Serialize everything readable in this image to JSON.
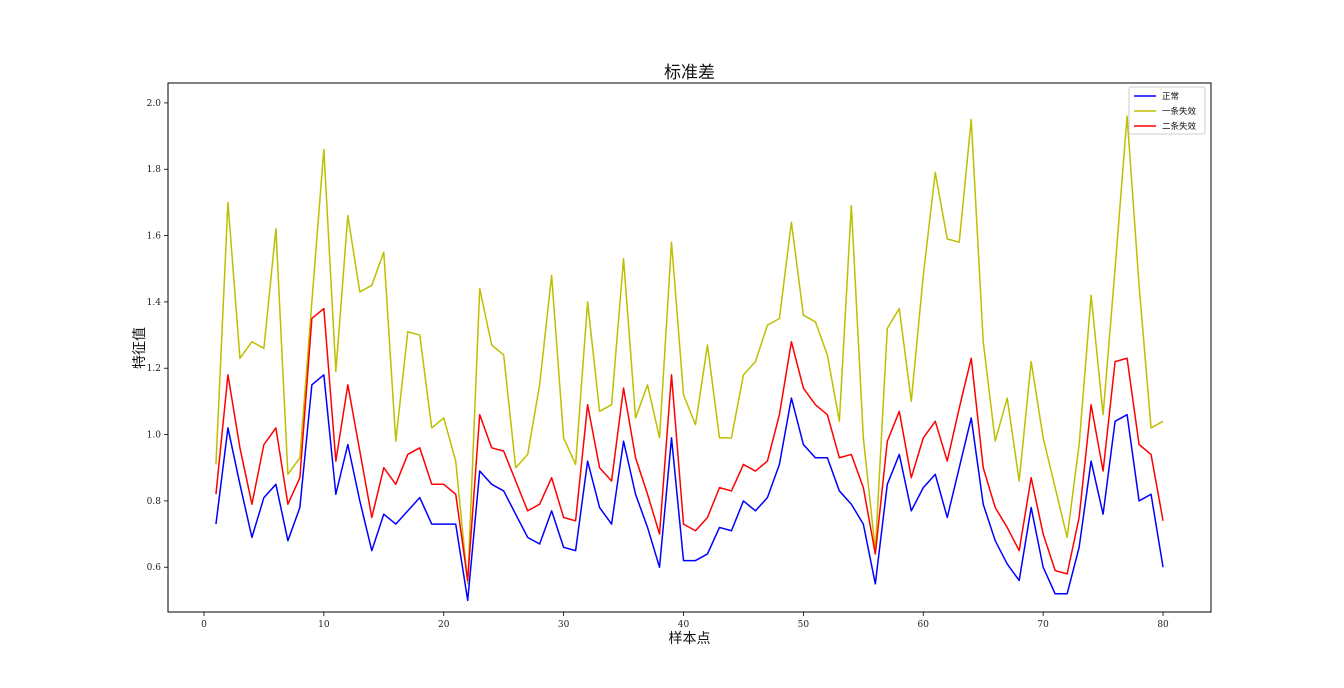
{
  "chart_data": {
    "type": "line",
    "title": "标准差",
    "xlabel": "样本点",
    "ylabel": "特征值",
    "xlim": [
      -3,
      84
    ],
    "ylim": [
      0.465,
      2.06
    ],
    "xticks": [
      0,
      10,
      20,
      30,
      40,
      50,
      60,
      70,
      80
    ],
    "yticks": [
      0.6,
      0.8,
      1.0,
      1.2,
      1.4,
      1.6,
      1.8,
      2.0
    ],
    "ytick_labels": [
      "0.6",
      "0.8",
      "1.0",
      "1.2",
      "1.4",
      "1.6",
      "1.8",
      "2.0"
    ],
    "grid": false,
    "legend_position": "top-right",
    "x": [
      1,
      2,
      3,
      4,
      5,
      6,
      7,
      8,
      9,
      10,
      11,
      12,
      13,
      14,
      15,
      16,
      17,
      18,
      19,
      20,
      21,
      22,
      23,
      24,
      25,
      26,
      27,
      28,
      29,
      30,
      31,
      32,
      33,
      34,
      35,
      36,
      37,
      38,
      39,
      40,
      41,
      42,
      43,
      44,
      45,
      46,
      47,
      48,
      49,
      50,
      51,
      52,
      53,
      54,
      55,
      56,
      57,
      58,
      59,
      60,
      61,
      62,
      63,
      64,
      65,
      66,
      67,
      68,
      69,
      70,
      71,
      72,
      73,
      74,
      75,
      76,
      77,
      78,
      79,
      80
    ],
    "series": [
      {
        "name": "正常",
        "color": "#0000ff",
        "values": [
          0.73,
          1.02,
          0.85,
          0.69,
          0.81,
          0.85,
          0.68,
          0.78,
          1.15,
          1.18,
          0.82,
          0.97,
          0.8,
          0.65,
          0.76,
          0.73,
          0.77,
          0.81,
          0.73,
          0.73,
          0.73,
          0.5,
          0.89,
          0.85,
          0.83,
          0.76,
          0.69,
          0.67,
          0.77,
          0.66,
          0.65,
          0.92,
          0.78,
          0.73,
          0.98,
          0.82,
          0.72,
          0.6,
          0.99,
          0.62,
          0.62,
          0.64,
          0.72,
          0.71,
          0.8,
          0.77,
          0.81,
          0.91,
          1.11,
          0.97,
          0.93,
          0.93,
          0.83,
          0.79,
          0.73,
          0.55,
          0.85,
          0.94,
          0.77,
          0.84,
          0.88,
          0.75,
          0.9,
          1.05,
          0.79,
          0.68,
          0.61,
          0.56,
          0.78,
          0.6,
          0.52,
          0.52,
          0.66,
          0.92,
          0.76,
          1.04,
          1.06,
          0.8,
          0.82,
          0.6
        ]
      },
      {
        "name": "一条失效",
        "color": "#bfbf00",
        "values": [
          0.91,
          1.7,
          1.23,
          1.28,
          1.26,
          1.62,
          0.88,
          0.93,
          1.4,
          1.86,
          1.19,
          1.66,
          1.43,
          1.45,
          1.55,
          0.98,
          1.31,
          1.3,
          1.02,
          1.05,
          0.92,
          0.55,
          1.44,
          1.27,
          1.24,
          0.9,
          0.94,
          1.15,
          1.48,
          0.99,
          0.91,
          1.4,
          1.07,
          1.09,
          1.53,
          1.05,
          1.15,
          0.99,
          1.58,
          1.12,
          1.03,
          1.27,
          0.99,
          0.99,
          1.18,
          1.22,
          1.33,
          1.35,
          1.64,
          1.36,
          1.34,
          1.24,
          1.04,
          1.69,
          0.99,
          0.65,
          1.32,
          1.38,
          1.1,
          1.48,
          1.79,
          1.59,
          1.58,
          1.95,
          1.28,
          0.98,
          1.11,
          0.86,
          1.22,
          0.99,
          0.84,
          0.69,
          0.97,
          1.42,
          1.06,
          1.5,
          1.96,
          1.45,
          1.02,
          1.04
        ]
      },
      {
        "name": "二条失效",
        "color": "#ff0000",
        "values": [
          0.82,
          1.18,
          0.96,
          0.79,
          0.97,
          1.02,
          0.79,
          0.87,
          1.35,
          1.38,
          0.92,
          1.15,
          0.95,
          0.75,
          0.9,
          0.85,
          0.94,
          0.96,
          0.85,
          0.85,
          0.82,
          0.56,
          1.06,
          0.96,
          0.95,
          0.86,
          0.77,
          0.79,
          0.87,
          0.75,
          0.74,
          1.09,
          0.9,
          0.86,
          1.14,
          0.93,
          0.82,
          0.7,
          1.18,
          0.73,
          0.71,
          0.75,
          0.84,
          0.83,
          0.91,
          0.89,
          0.92,
          1.06,
          1.28,
          1.14,
          1.09,
          1.06,
          0.93,
          0.94,
          0.84,
          0.64,
          0.98,
          1.07,
          0.87,
          0.99,
          1.04,
          0.92,
          1.08,
          1.23,
          0.9,
          0.78,
          0.72,
          0.65,
          0.87,
          0.7,
          0.59,
          0.58,
          0.75,
          1.09,
          0.89,
          1.22,
          1.23,
          0.97,
          0.94,
          0.74
        ]
      }
    ]
  }
}
